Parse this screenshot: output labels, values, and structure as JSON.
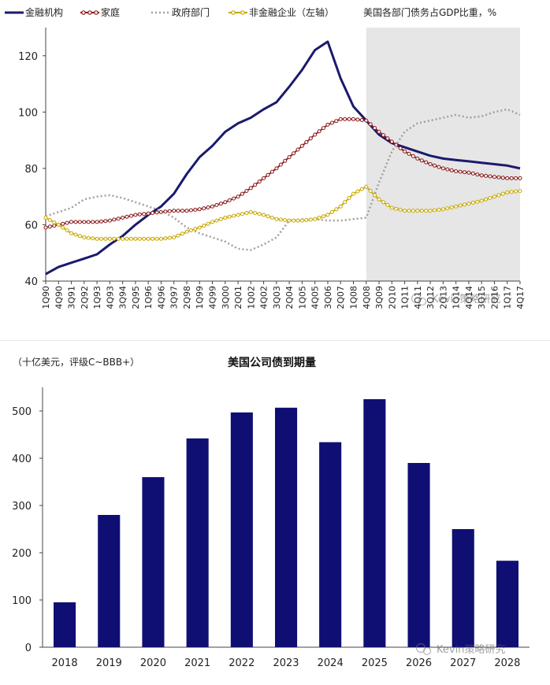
{
  "chart_data": [
    {
      "type": "line",
      "title": "美国各部门债务占GDP比重，%",
      "legend": [
        "金融机构",
        "家庭",
        "政府部门",
        "非金融企业（左轴）"
      ],
      "series_colors": [
        "#1a1a6e",
        "#8b1a1a",
        "#a0a0a0",
        "#c8a800"
      ],
      "legend_location": "top",
      "ylim": [
        40,
        130
      ],
      "yticks": [
        "40",
        "60",
        "80",
        "100",
        "120"
      ],
      "shaded_region": [
        "4Q08",
        "4Q17"
      ],
      "x_tick_labels": [
        "1Q90",
        "4Q90",
        "3Q91",
        "2Q92",
        "1Q93",
        "4Q93",
        "3Q94",
        "2Q95",
        "1Q96",
        "4Q96",
        "3Q97",
        "2Q98",
        "1Q99",
        "4Q99",
        "3Q00",
        "2Q01",
        "1Q02",
        "4Q02",
        "3Q03",
        "2Q04",
        "1Q05",
        "4Q05",
        "3Q06",
        "2Q07",
        "1Q08",
        "4Q08",
        "3Q09",
        "2Q10",
        "1Q11",
        "4Q11",
        "3Q12",
        "2Q13",
        "1Q14",
        "4Q14",
        "3Q15",
        "2Q16",
        "1Q17",
        "4Q17"
      ],
      "series": [
        {
          "name": "金融机构",
          "values": [
            42.5,
            45,
            46.5,
            48,
            49.5,
            53,
            56,
            60,
            63.5,
            66.5,
            71,
            78,
            84,
            88,
            93,
            96,
            98,
            101,
            103.5,
            109,
            115,
            122,
            125,
            112,
            102,
            97,
            92,
            89,
            87.5,
            86,
            84.5,
            83.5,
            83,
            82.5,
            82,
            81.5,
            81,
            80
          ]
        },
        {
          "name": "家庭",
          "values": [
            59,
            60,
            61,
            61,
            61,
            61.5,
            62.5,
            63.5,
            64,
            64.5,
            65,
            65,
            65.5,
            66.5,
            68,
            70,
            73,
            76.5,
            80,
            84,
            88,
            92,
            95.5,
            97.5,
            97.5,
            97,
            93,
            89.5,
            86,
            83.5,
            81.5,
            80,
            79,
            78.5,
            77.5,
            77,
            76.5,
            76.5
          ]
        },
        {
          "name": "政府部门",
          "values": [
            63,
            64.5,
            66,
            69,
            70,
            70.5,
            69.5,
            68,
            66.5,
            65,
            62.5,
            59,
            57,
            55.5,
            54,
            51.5,
            51,
            53,
            55.5,
            61.5,
            62,
            62,
            61.5,
            61.5,
            62,
            62.5,
            75,
            86,
            93,
            96,
            97,
            98,
            99,
            98,
            98.5,
            100,
            101,
            99
          ]
        },
        {
          "name": "非金融企业（左轴）",
          "values": [
            62.5,
            60,
            57,
            55.5,
            55,
            55,
            55,
            55,
            55,
            55,
            55.5,
            57.5,
            59,
            61,
            62.5,
            63.5,
            64.5,
            63.5,
            62,
            61.5,
            61.5,
            62,
            63.5,
            66.5,
            71,
            73.5,
            69,
            66,
            65,
            65,
            65,
            65.5,
            66.5,
            67.5,
            68.5,
            70,
            71.5,
            72
          ]
        }
      ]
    },
    {
      "type": "bar",
      "title": "美国公司债到期量",
      "unit_label": "（十亿美元，评级C~BBB+）",
      "bar_color": "#0f0f73",
      "categories": [
        "2018",
        "2019",
        "2020",
        "2021",
        "2022",
        "2023",
        "2024",
        "2025",
        "2026",
        "2027",
        "2028"
      ],
      "values": [
        95,
        280,
        360,
        442,
        497,
        507,
        434,
        525,
        390,
        250,
        183
      ],
      "ylim": [
        0,
        550
      ],
      "yticks": [
        "0",
        "100",
        "200",
        "300",
        "400",
        "500"
      ]
    }
  ],
  "watermark": "Kevin策略研究"
}
